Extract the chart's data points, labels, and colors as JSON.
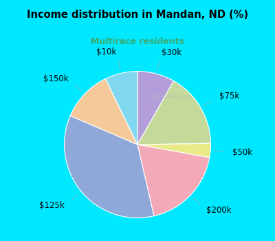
{
  "title": "Income distribution in Mandan, ND (%)",
  "subtitle": "Multirace residents",
  "subtitle_color": "#3aaa6e",
  "bg_top": "#00e8ff",
  "bg_chart": "#d8f0d8",
  "slices": [
    {
      "label": "$30k",
      "value": 8,
      "color": "#b39ddb"
    },
    {
      "label": "$75k",
      "value": 16,
      "color": "#c5d99a"
    },
    {
      "label": "$50k",
      "value": 3,
      "color": "#eaea88"
    },
    {
      "label": "$200k",
      "value": 18,
      "color": "#f4a9b8"
    },
    {
      "label": "$125k",
      "value": 34,
      "color": "#8fa8d8"
    },
    {
      "label": "$150k",
      "value": 11,
      "color": "#f5c99a"
    },
    {
      "label": "$10k",
      "value": 7,
      "color": "#80d8f0"
    }
  ],
  "start_angle": 90,
  "label_fontsize": 8.5,
  "figsize": [
    4.0,
    3.5
  ],
  "dpi": 100
}
